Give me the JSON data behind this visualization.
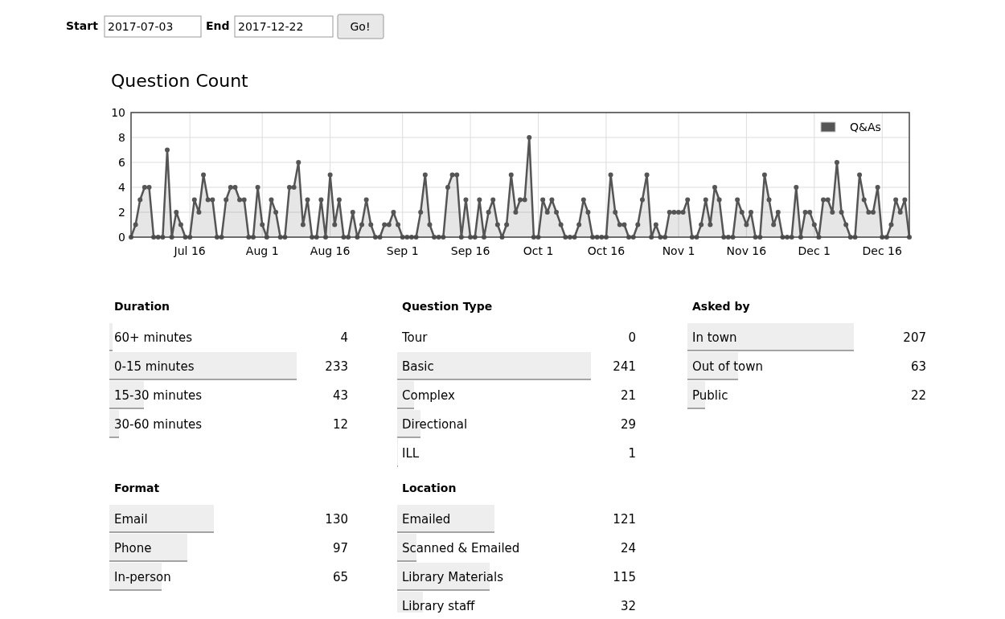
{
  "chart_data": [
    {
      "type": "other",
      "annotations": [
        "Start",
        "2017-07-03",
        "End",
        "2017-12-22",
        "Go!"
      ]
    },
    {
      "type": "area",
      "title": "Question Count",
      "xlim": [
        "2017-07-03",
        "2017-12-22"
      ],
      "ylim": [
        0,
        10
      ],
      "yticks": [
        0,
        2,
        4,
        6,
        8,
        10
      ],
      "xticks": [
        {
          "value": "2017-07-16",
          "label": "Jul 16"
        },
        {
          "value": "2017-08-01",
          "label": "Aug 1"
        },
        {
          "value": "2017-08-16",
          "label": "Aug 16"
        },
        {
          "value": "2017-09-01",
          "label": "Sep 1"
        },
        {
          "value": "2017-09-16",
          "label": "Sep 16"
        },
        {
          "value": "2017-10-01",
          "label": "Oct 1"
        },
        {
          "value": "2017-10-16",
          "label": "Oct 16"
        },
        {
          "value": "2017-11-01",
          "label": "Nov 1"
        },
        {
          "value": "2017-11-16",
          "label": "Nov 16"
        },
        {
          "value": "2017-12-01",
          "label": "Dec 1"
        },
        {
          "value": "2017-12-16",
          "label": "Dec 16"
        }
      ],
      "grid": true,
      "legend": "top right",
      "marker": "circle",
      "line_style": "solid",
      "x": [
        "2017-07-03",
        "2017-07-04",
        "2017-07-05",
        "2017-07-06",
        "2017-07-07",
        "2017-07-08",
        "2017-07-09",
        "2017-07-10",
        "2017-07-11",
        "2017-07-12",
        "2017-07-13",
        "2017-07-14",
        "2017-07-15",
        "2017-07-16",
        "2017-07-17",
        "2017-07-18",
        "2017-07-19",
        "2017-07-20",
        "2017-07-21",
        "2017-07-22",
        "2017-07-23",
        "2017-07-24",
        "2017-07-25",
        "2017-07-26",
        "2017-07-27",
        "2017-07-28",
        "2017-07-29",
        "2017-07-30",
        "2017-07-31",
        "2017-08-01",
        "2017-08-02",
        "2017-08-03",
        "2017-08-04",
        "2017-08-05",
        "2017-08-06",
        "2017-08-07",
        "2017-08-08",
        "2017-08-09",
        "2017-08-10",
        "2017-08-11",
        "2017-08-12",
        "2017-08-13",
        "2017-08-14",
        "2017-08-15",
        "2017-08-16",
        "2017-08-17",
        "2017-08-18",
        "2017-08-19",
        "2017-08-20",
        "2017-08-21",
        "2017-08-22",
        "2017-08-23",
        "2017-08-24",
        "2017-08-25",
        "2017-08-26",
        "2017-08-27",
        "2017-08-28",
        "2017-08-29",
        "2017-08-30",
        "2017-08-31",
        "2017-09-01",
        "2017-09-02",
        "2017-09-03",
        "2017-09-04",
        "2017-09-05",
        "2017-09-06",
        "2017-09-07",
        "2017-09-08",
        "2017-09-09",
        "2017-09-10",
        "2017-09-11",
        "2017-09-12",
        "2017-09-13",
        "2017-09-14",
        "2017-09-15",
        "2017-09-16",
        "2017-09-17",
        "2017-09-18",
        "2017-09-19",
        "2017-09-20",
        "2017-09-21",
        "2017-09-22",
        "2017-09-23",
        "2017-09-24",
        "2017-09-25",
        "2017-09-26",
        "2017-09-27",
        "2017-09-28",
        "2017-09-29",
        "2017-09-30",
        "2017-10-01",
        "2017-10-02",
        "2017-10-03",
        "2017-10-04",
        "2017-10-05",
        "2017-10-06",
        "2017-10-07",
        "2017-10-08",
        "2017-10-09",
        "2017-10-10",
        "2017-10-11",
        "2017-10-12",
        "2017-10-13",
        "2017-10-14",
        "2017-10-15",
        "2017-10-16",
        "2017-10-17",
        "2017-10-18",
        "2017-10-19",
        "2017-10-20",
        "2017-10-21",
        "2017-10-22",
        "2017-10-23",
        "2017-10-24",
        "2017-10-25",
        "2017-10-26",
        "2017-10-27",
        "2017-10-28",
        "2017-10-29",
        "2017-10-30",
        "2017-10-31",
        "2017-11-01",
        "2017-11-02",
        "2017-11-03",
        "2017-11-04",
        "2017-11-05",
        "2017-11-06",
        "2017-11-07",
        "2017-11-08",
        "2017-11-09",
        "2017-11-10",
        "2017-11-11",
        "2017-11-12",
        "2017-11-13",
        "2017-11-14",
        "2017-11-15",
        "2017-11-16",
        "2017-11-17",
        "2017-11-18",
        "2017-11-19",
        "2017-11-20",
        "2017-11-21",
        "2017-11-22",
        "2017-11-23",
        "2017-11-24",
        "2017-11-25",
        "2017-11-26",
        "2017-11-27",
        "2017-11-28",
        "2017-11-29",
        "2017-11-30",
        "2017-12-01",
        "2017-12-02",
        "2017-12-03",
        "2017-12-04",
        "2017-12-05",
        "2017-12-06",
        "2017-12-07",
        "2017-12-08",
        "2017-12-09",
        "2017-12-10",
        "2017-12-11",
        "2017-12-12",
        "2017-12-13",
        "2017-12-14",
        "2017-12-15",
        "2017-12-16",
        "2017-12-17",
        "2017-12-18",
        "2017-12-19",
        "2017-12-20",
        "2017-12-21",
        "2017-12-22"
      ],
      "series": [
        {
          "name": "Q&As",
          "color": "#555555",
          "values": [
            0,
            1,
            3,
            4,
            4,
            0,
            0,
            0,
            7,
            0,
            2,
            1,
            0,
            0,
            3,
            2,
            5,
            3,
            3,
            0,
            0,
            3,
            4,
            4,
            3,
            3,
            0,
            0,
            4,
            1,
            0,
            3,
            2,
            0,
            0,
            4,
            4,
            6,
            1,
            3,
            0,
            0,
            3,
            0,
            5,
            1,
            3,
            0,
            0,
            2,
            0,
            1,
            3,
            1,
            0,
            0,
            1,
            1,
            2,
            1,
            0,
            0,
            0,
            0,
            2,
            5,
            1,
            0,
            0,
            0,
            4,
            5,
            5,
            0,
            3,
            0,
            0,
            3,
            0,
            2,
            3,
            1,
            0,
            1,
            5,
            2,
            3,
            3,
            8,
            0,
            0,
            3,
            2,
            3,
            2,
            1,
            0,
            0,
            0,
            1,
            3,
            2,
            0,
            0,
            0,
            0,
            5,
            2,
            1,
            1,
            0,
            0,
            1,
            3,
            5,
            0,
            1,
            0,
            0,
            2,
            2,
            2,
            2,
            3,
            0,
            0,
            1,
            3,
            1,
            4,
            3,
            0,
            0,
            0,
            3,
            2,
            1,
            2,
            0,
            0,
            5,
            3,
            1,
            2,
            0,
            0,
            0,
            4,
            0,
            2,
            2,
            1,
            0,
            3,
            3,
            2,
            6,
            2,
            1,
            0,
            0,
            5,
            3,
            2,
            2,
            4,
            0,
            0,
            1,
            3,
            2,
            3,
            0
          ]
        }
      ]
    },
    {
      "type": "bar",
      "orientation": "horizontal",
      "title": "Duration",
      "categories": [
        "60+ minutes",
        "0-15 minutes",
        "15-30 minutes",
        "30-60 minutes"
      ],
      "values": [
        4,
        233,
        43,
        12
      ],
      "color": "#eeeeee",
      "data_labels": true
    },
    {
      "type": "bar",
      "orientation": "horizontal",
      "title": "Question Type",
      "categories": [
        "Tour",
        "Basic",
        "Complex",
        "Directional",
        "ILL"
      ],
      "values": [
        0,
        241,
        21,
        29,
        1
      ],
      "color": "#eeeeee",
      "data_labels": true
    },
    {
      "type": "bar",
      "orientation": "horizontal",
      "title": "Asked by",
      "categories": [
        "In town",
        "Out of town",
        "Public"
      ],
      "values": [
        207,
        63,
        22
      ],
      "color": "#eeeeee",
      "data_labels": true
    },
    {
      "type": "bar",
      "orientation": "horizontal",
      "title": "Format",
      "categories": [
        "Email",
        "Phone",
        "In-person"
      ],
      "values": [
        130,
        97,
        65
      ],
      "color": "#eeeeee",
      "data_labels": true
    },
    {
      "type": "bar",
      "orientation": "horizontal",
      "title": "Location",
      "categories": [
        "Emailed",
        "Scanned & Emailed",
        "Library Materials",
        "Library staff"
      ],
      "values": [
        121,
        24,
        115,
        32
      ],
      "color": "#eeeeee",
      "data_labels": true
    }
  ]
}
